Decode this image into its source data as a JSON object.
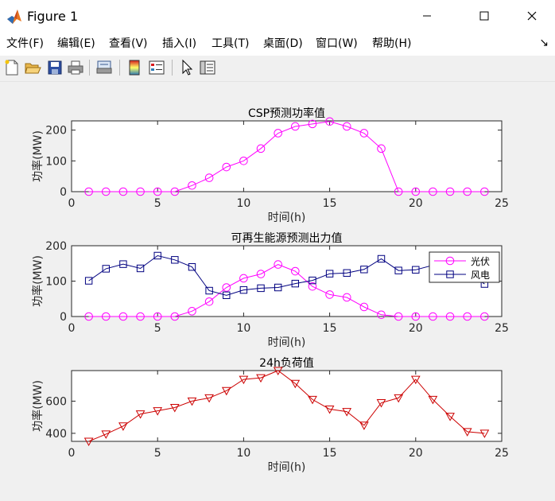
{
  "window": {
    "title": "Figure 1",
    "minimize_icon": "minimize-icon",
    "maximize_icon": "maximize-icon",
    "close_icon": "close-icon"
  },
  "menu": {
    "items": [
      "文件(F)",
      "编辑(E)",
      "查看(V)",
      "插入(I)",
      "工具(T)",
      "桌面(D)",
      "窗口(W)",
      "帮助(H)"
    ],
    "dock_glyph": "↘"
  },
  "toolbar": {
    "icons": [
      "new-file-icon",
      "open-folder-icon",
      "save-icon",
      "print-icon",
      "print-preview-icon",
      "colorbar-icon",
      "legend-icon",
      "pointer-icon",
      "property-editor-icon"
    ]
  },
  "colors": {
    "csp": "#ff00ff",
    "solar": "#ff00ff",
    "wind": "#000080",
    "load": "#cc0000"
  },
  "chart_data": [
    {
      "type": "line",
      "title": "CSP预测功率值",
      "xlabel": "时间(h)",
      "ylabel": "功率(MW)",
      "xlim": [
        0,
        25
      ],
      "ylim": [
        0,
        230
      ],
      "xticks": [
        0,
        5,
        10,
        15,
        20,
        25
      ],
      "yticks": [
        0,
        100,
        200
      ],
      "grid": false,
      "series": [
        {
          "marker": "circle",
          "x": [
            1,
            2,
            3,
            4,
            5,
            6,
            7,
            8,
            9,
            10,
            11,
            12,
            13,
            14,
            15,
            16,
            17,
            18,
            19,
            20,
            21,
            22,
            23,
            24
          ],
          "values": [
            0,
            0,
            0,
            0,
            0,
            0,
            20,
            45,
            80,
            100,
            140,
            190,
            212,
            220,
            228,
            212,
            190,
            140,
            0,
            0,
            0,
            0,
            0,
            0
          ]
        }
      ]
    },
    {
      "type": "line",
      "title": "可再生能源预测出力值",
      "xlabel": "时间(h)",
      "ylabel": "功率(MW)",
      "xlim": [
        0,
        25
      ],
      "ylim": [
        0,
        200
      ],
      "xticks": [
        0,
        5,
        10,
        15,
        20,
        25
      ],
      "yticks": [
        0,
        100,
        200
      ],
      "grid": false,
      "legend": "top-right",
      "series": [
        {
          "name": "光伏",
          "marker": "circle",
          "x": [
            1,
            2,
            3,
            4,
            5,
            6,
            7,
            8,
            9,
            10,
            11,
            12,
            13,
            14,
            15,
            16,
            17,
            18,
            19,
            20,
            21,
            22,
            23,
            24
          ],
          "values": [
            0,
            0,
            0,
            0,
            0,
            0,
            15,
            42,
            82,
            108,
            120,
            147,
            128,
            85,
            62,
            54,
            27,
            5,
            0,
            0,
            0,
            0,
            0,
            0
          ]
        },
        {
          "name": "风电",
          "marker": "square",
          "x": [
            1,
            2,
            3,
            4,
            5,
            6,
            7,
            8,
            9,
            10,
            11,
            12,
            13,
            14,
            15,
            16,
            17,
            18,
            19,
            20,
            21,
            22,
            23,
            24
          ],
          "values": [
            101,
            135,
            148,
            136,
            172,
            160,
            140,
            73,
            60,
            75,
            80,
            82,
            93,
            102,
            121,
            123,
            133,
            163,
            130,
            132,
            145,
            130,
            125,
            92
          ]
        }
      ]
    },
    {
      "type": "line",
      "title": "24h负荷值",
      "xlabel": "时间(h)",
      "ylabel": "功率(MW)",
      "xlim": [
        0,
        25
      ],
      "ylim": [
        350,
        790
      ],
      "xticks": [
        0,
        5,
        10,
        15,
        20,
        25
      ],
      "yticks": [
        400,
        600
      ],
      "grid": false,
      "series": [
        {
          "marker": "triangle-down",
          "x": [
            1,
            2,
            3,
            4,
            5,
            6,
            7,
            8,
            9,
            10,
            11,
            12,
            13,
            14,
            15,
            16,
            17,
            18,
            19,
            20,
            21,
            22,
            23,
            24
          ],
          "values": [
            350,
            395,
            445,
            520,
            540,
            560,
            600,
            620,
            665,
            735,
            745,
            790,
            710,
            610,
            550,
            535,
            450,
            590,
            620,
            735,
            610,
            505,
            410,
            400
          ]
        }
      ]
    }
  ]
}
